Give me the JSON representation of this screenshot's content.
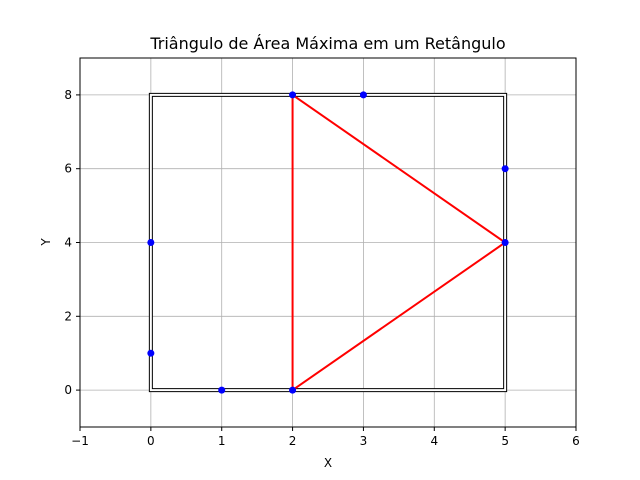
{
  "chart_data": {
    "type": "scatter",
    "title": "Triângulo de Área Máxima em um Retângulo",
    "xlabel": "X",
    "ylabel": "Y",
    "xlim": [
      -1,
      6
    ],
    "ylim": [
      -1,
      9
    ],
    "xticks": [
      -1,
      0,
      1,
      2,
      3,
      4,
      5,
      6
    ],
    "yticks": [
      0,
      2,
      4,
      6,
      8
    ],
    "xtick_labels": [
      "−1",
      "0",
      "1",
      "2",
      "3",
      "4",
      "5",
      "6"
    ],
    "ytick_labels": [
      "0",
      "2",
      "4",
      "6",
      "8"
    ],
    "grid": true,
    "rectangle": [
      [
        0,
        0
      ],
      [
        5,
        0
      ],
      [
        5,
        8
      ],
      [
        0,
        8
      ]
    ],
    "points": [
      [
        0,
        1
      ],
      [
        0,
        4
      ],
      [
        1,
        0
      ],
      [
        2,
        0
      ],
      [
        2,
        8
      ],
      [
        3,
        8
      ],
      [
        5,
        4
      ],
      [
        5,
        6
      ]
    ],
    "triangle": [
      [
        2,
        0
      ],
      [
        2,
        8
      ],
      [
        5,
        4
      ]
    ],
    "colors": {
      "points": "#0000ff",
      "triangle": "#ff0000",
      "rectangle": "#000000",
      "grid": "#b0b0b0"
    }
  }
}
